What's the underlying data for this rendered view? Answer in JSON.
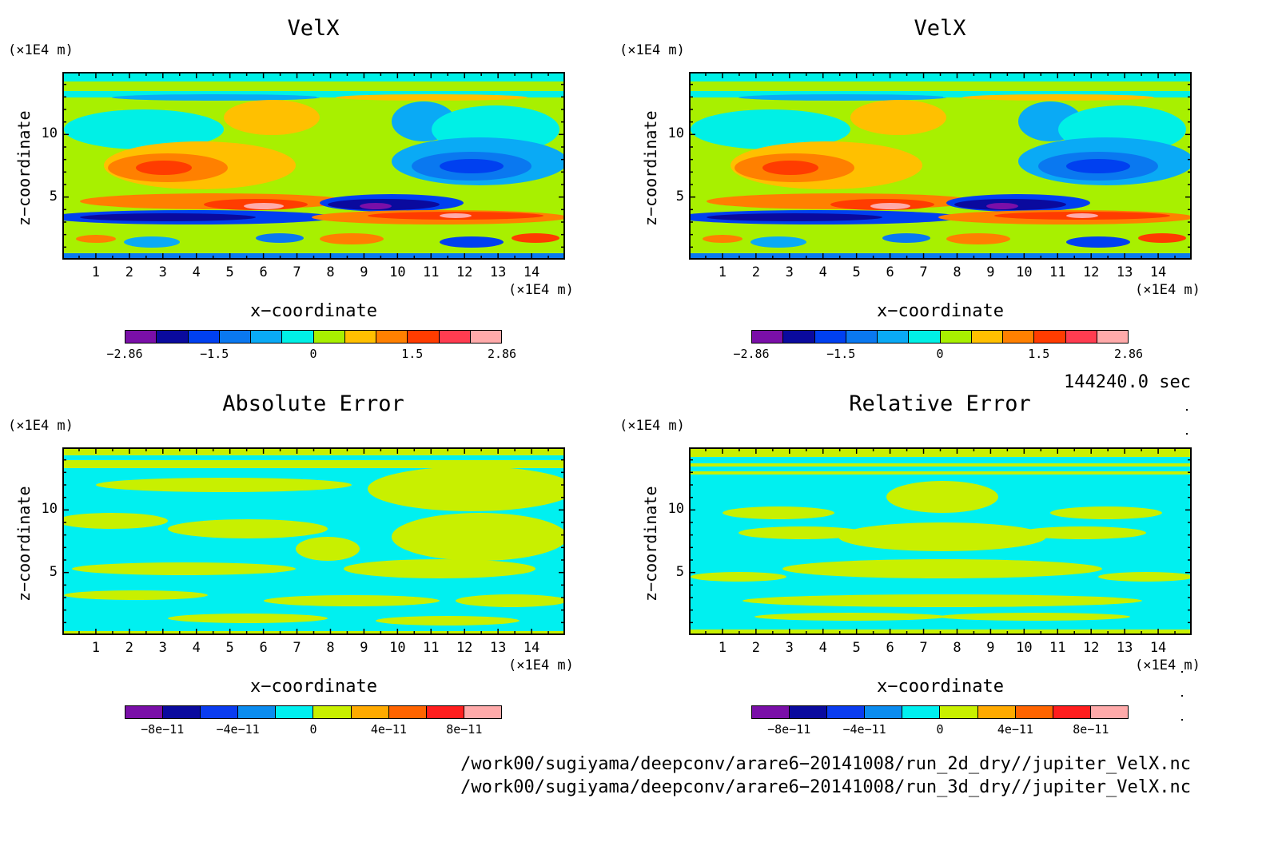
{
  "panels": [
    {
      "id": "p1",
      "title": "VelX",
      "xlabel": "x−coordinate",
      "ylabel": "z−coordinate",
      "xunit": "(×1E4 m)",
      "yunit": "(×1E4 m)",
      "colorbar_ticks": [
        "−2.86",
        "−1.5",
        "0",
        "1.5",
        "2.86"
      ]
    },
    {
      "id": "p2",
      "title": "VelX",
      "xlabel": "x−coordinate",
      "ylabel": "z−coordinate",
      "xunit": "(×1E4 m)",
      "yunit": "(×1E4 m)",
      "colorbar_ticks": [
        "−2.86",
        "−1.5",
        "0",
        "1.5",
        "2.86"
      ]
    },
    {
      "id": "p3",
      "title": "Absolute Error",
      "xlabel": "x−coordinate",
      "ylabel": "z−coordinate",
      "xunit": "(×1E4 m)",
      "yunit": "(×1E4 m)",
      "colorbar_ticks": [
        "−8e−11",
        "−4e−11",
        "0",
        "4e−11",
        "8e−11"
      ]
    },
    {
      "id": "p4",
      "title": "Relative Error",
      "xlabel": "x−coordinate",
      "ylabel": "z−coordinate",
      "xunit": "(×1E4 m)",
      "yunit": "(×1E4 m)",
      "colorbar_ticks": [
        "−8e−11",
        "−4e−11",
        "0",
        "4e−11",
        "8e−11"
      ]
    }
  ],
  "x_ticks": [
    "1",
    "2",
    "3",
    "4",
    "5",
    "6",
    "7",
    "8",
    "9",
    "10",
    "11",
    "12",
    "13",
    "14"
  ],
  "y_ticks": [
    "5",
    "10"
  ],
  "time_label": "144240.0 sec",
  "file_paths": [
    "/work00/sugiyama/deepconv/arare6−20141008/run_2d_dry//jupiter_VelX.nc",
    "/work00/sugiyama/deepconv/arare6−20141008/run_3d_dry//jupiter_VelX.nc"
  ],
  "colors": {
    "velx_levels": [
      "#7a0fa8",
      "#0a0a9e",
      "#0040f0",
      "#0a78f0",
      "#0aaaf5",
      "#00f0e6",
      "#a8f000",
      "#ffc000",
      "#ff8000",
      "#ff3c00",
      "#ff3c50",
      "#ffaaaa"
    ],
    "error_levels": [
      "#7a0fa8",
      "#0a0a9e",
      "#0a3cf0",
      "#0a8cf0",
      "#00f0f0",
      "#c8f000",
      "#ffaa00",
      "#ff6400",
      "#ff1e1e",
      "#ffaaaa"
    ]
  },
  "chart_data": [
    {
      "type": "heatmap",
      "title": "VelX",
      "xlabel": "x−coordinate",
      "ylabel": "z−coordinate",
      "xlim": [
        0,
        15
      ],
      "ylim": [
        0,
        15
      ],
      "units": "×1E4 m",
      "colorbar": {
        "min": -2.86,
        "max": 2.86,
        "ticks": [
          -2.86,
          -1.5,
          0,
          1.5,
          2.86
        ]
      },
      "features": [
        {
          "x": [
            3,
            7
          ],
          "z": 7.5,
          "value": 2.0
        },
        {
          "x": [
            10,
            14
          ],
          "z": 7.5,
          "value": -2.0
        },
        {
          "x": [
            5,
            7
          ],
          "z": 4.5,
          "value": 2.86
        },
        {
          "x": [
            8,
            11
          ],
          "z": 4.5,
          "value": -2.86
        },
        {
          "x": [
            1,
            6
          ],
          "z": 3.5,
          "value": -2.5
        },
        {
          "x": [
            9,
            14
          ],
          "z": 3.5,
          "value": 2.5
        },
        {
          "x": [
            4,
            7
          ],
          "z": 10.5,
          "value": 1.0
        },
        {
          "x": [
            8,
            11
          ],
          "z": 10.5,
          "value": -1.0
        }
      ]
    },
    {
      "type": "heatmap",
      "title": "VelX",
      "xlabel": "x−coordinate",
      "ylabel": "z−coordinate",
      "xlim": [
        0,
        15
      ],
      "ylim": [
        0,
        15
      ],
      "units": "×1E4 m",
      "colorbar": {
        "min": -2.86,
        "max": 2.86,
        "ticks": [
          -2.86,
          -1.5,
          0,
          1.5,
          2.86
        ]
      },
      "features": [
        {
          "x": [
            3,
            7
          ],
          "z": 7.5,
          "value": 2.0
        },
        {
          "x": [
            10,
            14
          ],
          "z": 7.5,
          "value": -2.0
        },
        {
          "x": [
            5,
            7
          ],
          "z": 4.5,
          "value": 2.86
        },
        {
          "x": [
            8,
            11
          ],
          "z": 4.5,
          "value": -2.86
        },
        {
          "x": [
            1,
            6
          ],
          "z": 3.5,
          "value": -2.5
        },
        {
          "x": [
            9,
            14
          ],
          "z": 3.5,
          "value": 2.5
        },
        {
          "x": [
            4,
            7
          ],
          "z": 10.5,
          "value": 1.0
        },
        {
          "x": [
            8,
            11
          ],
          "z": 10.5,
          "value": -1.0
        }
      ]
    },
    {
      "type": "heatmap",
      "title": "Absolute Error",
      "xlabel": "x−coordinate",
      "ylabel": "z−coordinate",
      "xlim": [
        0,
        15
      ],
      "ylim": [
        0,
        15
      ],
      "units": "×1E4 m",
      "colorbar": {
        "min": -1e-10,
        "max": 1e-10,
        "ticks": [
          -8e-11,
          -4e-11,
          0,
          4e-11,
          8e-11
        ]
      },
      "range_shown": [
        -2e-11,
        2e-11
      ]
    },
    {
      "type": "heatmap",
      "title": "Relative Error",
      "xlabel": "x−coordinate",
      "ylabel": "z−coordinate",
      "xlim": [
        0,
        15
      ],
      "ylim": [
        0,
        15
      ],
      "units": "×1E4 m",
      "colorbar": {
        "min": -1e-10,
        "max": 1e-10,
        "ticks": [
          -8e-11,
          -4e-11,
          0,
          4e-11,
          8e-11
        ]
      },
      "range_shown": [
        -2e-11,
        2e-11
      ]
    }
  ]
}
